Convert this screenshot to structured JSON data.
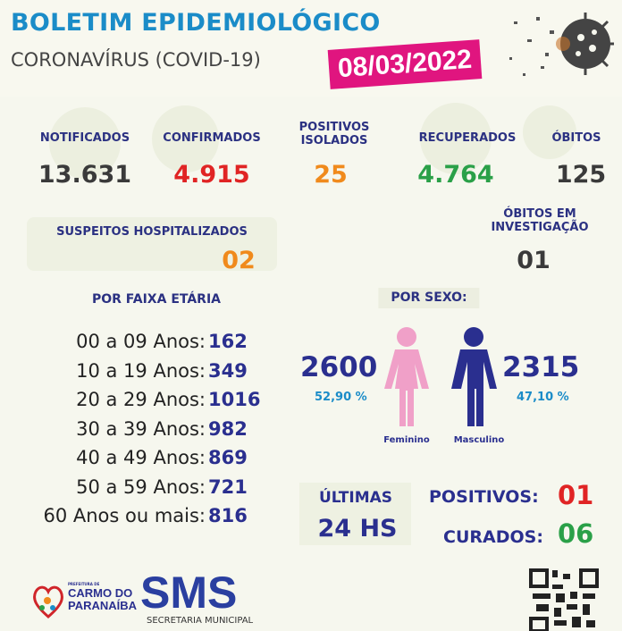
{
  "header": {
    "title": "BOLETIM EPIDEMIOLÓGICO",
    "subtitle": "CORONAVÍRUS (COVID-19)",
    "date": "08/03/2022"
  },
  "stats": {
    "notificados": {
      "label": "NOTIFICADOS",
      "value": "13.631"
    },
    "confirmados": {
      "label": "CONFIRMADOS",
      "value": "4.915"
    },
    "positivos_isolados": {
      "label": "POSITIVOS ISOLADOS",
      "value": "25"
    },
    "recuperados": {
      "label": "RECUPERADOS",
      "value": "4.764"
    },
    "obitos": {
      "label": "ÓBITOS",
      "value": "125"
    },
    "suspeitos_hospitalizados": {
      "label": "SUSPEITOS HOSPITALIZADOS",
      "value": "02"
    },
    "obitos_investigacao": {
      "label": "ÓBITOS EM INVESTIGAÇÃO",
      "value": "01"
    }
  },
  "faixa_etaria": {
    "title": "POR FAIXA ETÁRIA",
    "rows": [
      {
        "label": "00 a 09 Anos:",
        "value": "162"
      },
      {
        "label": "10 a 19 Anos:",
        "value": "349"
      },
      {
        "label": "20 a 29 Anos:",
        "value": "1016"
      },
      {
        "label": "30 a 39 Anos:",
        "value": "982"
      },
      {
        "label": "40 a 49 Anos:",
        "value": "869"
      },
      {
        "label": "50 a 59 Anos:",
        "value": "721"
      },
      {
        "label": "60 Anos ou mais:",
        "value": "816"
      }
    ]
  },
  "sexo": {
    "title": "POR SEXO:",
    "feminino": {
      "label": "Feminino",
      "value": "2600",
      "percent": "52,90 %",
      "color": "#f0a0c8"
    },
    "masculino": {
      "label": "Masculino",
      "value": "2315",
      "percent": "47,10 %",
      "color": "#2a2f8f"
    }
  },
  "ultimas": {
    "line1": "ÚLTIMAS",
    "line2": "24 HS",
    "positivos_label": "POSITIVOS:",
    "positivos_value": "01",
    "curados_label": "CURADOS:",
    "curados_value": "06"
  },
  "footer": {
    "prefeitura_small": "PREFEITURA DE",
    "city": "CARMO DO PARANAÍBA",
    "sms": "SMS",
    "sms_sub": "SECRETARIA MUNICIPAL"
  },
  "colors": {
    "blue": "#1b8cc8",
    "magenta": "#e0157f",
    "navy": "#2a2f8f",
    "red": "#e02424",
    "orange": "#f08a1c",
    "green": "#2aa048"
  }
}
